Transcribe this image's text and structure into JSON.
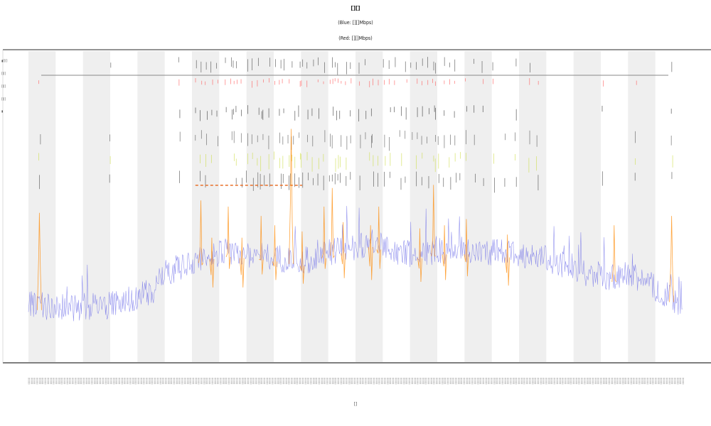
{
  "chart_data": {
    "type": "line",
    "title": "[][]",
    "subtitle_lines": [
      "(Blue: [][]Mbps)",
      "(Red: [][]Mbps)"
    ],
    "xlabel": "[]",
    "ylabel": "",
    "legend": [
      {
        "label": "▮[][]",
        "color": "#2a2a2a"
      },
      {
        "label": "[][]",
        "color": "#b8b8b8"
      },
      {
        "label": "[][]",
        "color": "#f0a060"
      },
      {
        "label": "[][]",
        "color": "#d8d84a"
      },
      {
        "label": "▮",
        "color": "#2a2a2a"
      }
    ],
    "legend_placement": "top-left",
    "x_count": 240,
    "x_bands": 24,
    "ylim": [
      0,
      100
    ],
    "series": [
      {
        "color": "#6a6ae8",
        "envelope": [
          {
            "x": 0,
            "y": 17
          },
          {
            "x": 15,
            "y": 16
          },
          {
            "x": 30,
            "y": 17
          },
          {
            "x": 45,
            "y": 21
          },
          {
            "x": 50,
            "y": 27
          },
          {
            "x": 60,
            "y": 31
          },
          {
            "x": 70,
            "y": 34
          },
          {
            "x": 85,
            "y": 33
          },
          {
            "x": 100,
            "y": 31
          },
          {
            "x": 110,
            "y": 34
          },
          {
            "x": 125,
            "y": 37
          },
          {
            "x": 140,
            "y": 33
          },
          {
            "x": 155,
            "y": 35
          },
          {
            "x": 170,
            "y": 34
          },
          {
            "x": 185,
            "y": 33
          },
          {
            "x": 200,
            "y": 29
          },
          {
            "x": 210,
            "y": 25
          },
          {
            "x": 220,
            "y": 27
          },
          {
            "x": 232,
            "y": 21
          },
          {
            "x": 239,
            "y": 17
          }
        ]
      },
      {
        "color": "#ff8800",
        "spikes": [
          {
            "x": 4,
            "y": 48
          },
          {
            "x": 63,
            "y": 52
          },
          {
            "x": 67,
            "y": 40
          },
          {
            "x": 73,
            "y": 50
          },
          {
            "x": 78,
            "y": 40
          },
          {
            "x": 85,
            "y": 47
          },
          {
            "x": 90,
            "y": 44
          },
          {
            "x": 96,
            "y": 75
          },
          {
            "x": 100,
            "y": 42
          },
          {
            "x": 108,
            "y": 50
          },
          {
            "x": 111,
            "y": 56
          },
          {
            "x": 115,
            "y": 45
          },
          {
            "x": 125,
            "y": 44
          },
          {
            "x": 128,
            "y": 50
          },
          {
            "x": 143,
            "y": 43
          },
          {
            "x": 148,
            "y": 57
          },
          {
            "x": 152,
            "y": 44
          },
          {
            "x": 160,
            "y": 46
          },
          {
            "x": 175,
            "y": 41
          },
          {
            "x": 214,
            "y": 44
          },
          {
            "x": 235,
            "y": 47
          }
        ]
      }
    ],
    "event_markers": {
      "positions": [
        4,
        30,
        55,
        61,
        63,
        65,
        67,
        69,
        72,
        74,
        75,
        76,
        78,
        80,
        82,
        84,
        85,
        86,
        88,
        90,
        92,
        93,
        95,
        96,
        97,
        99,
        100,
        102,
        104,
        106,
        108,
        110,
        111,
        112,
        113,
        114,
        116,
        118,
        121,
        123,
        125,
        126,
        128,
        130,
        132,
        134,
        136,
        138,
        140,
        142,
        144,
        146,
        148,
        149,
        150,
        152,
        154,
        156,
        158,
        160,
        163,
        166,
        170,
        174,
        178,
        183,
        186,
        210,
        222,
        235
      ],
      "rows": [
        {
          "color": "#444444"
        },
        {
          "color": "#ff5555"
        },
        {
          "color": "#333333"
        },
        {
          "color": "#555555"
        },
        {
          "color": "#ccdd44"
        },
        {
          "color": "#444444"
        }
      ]
    }
  }
}
